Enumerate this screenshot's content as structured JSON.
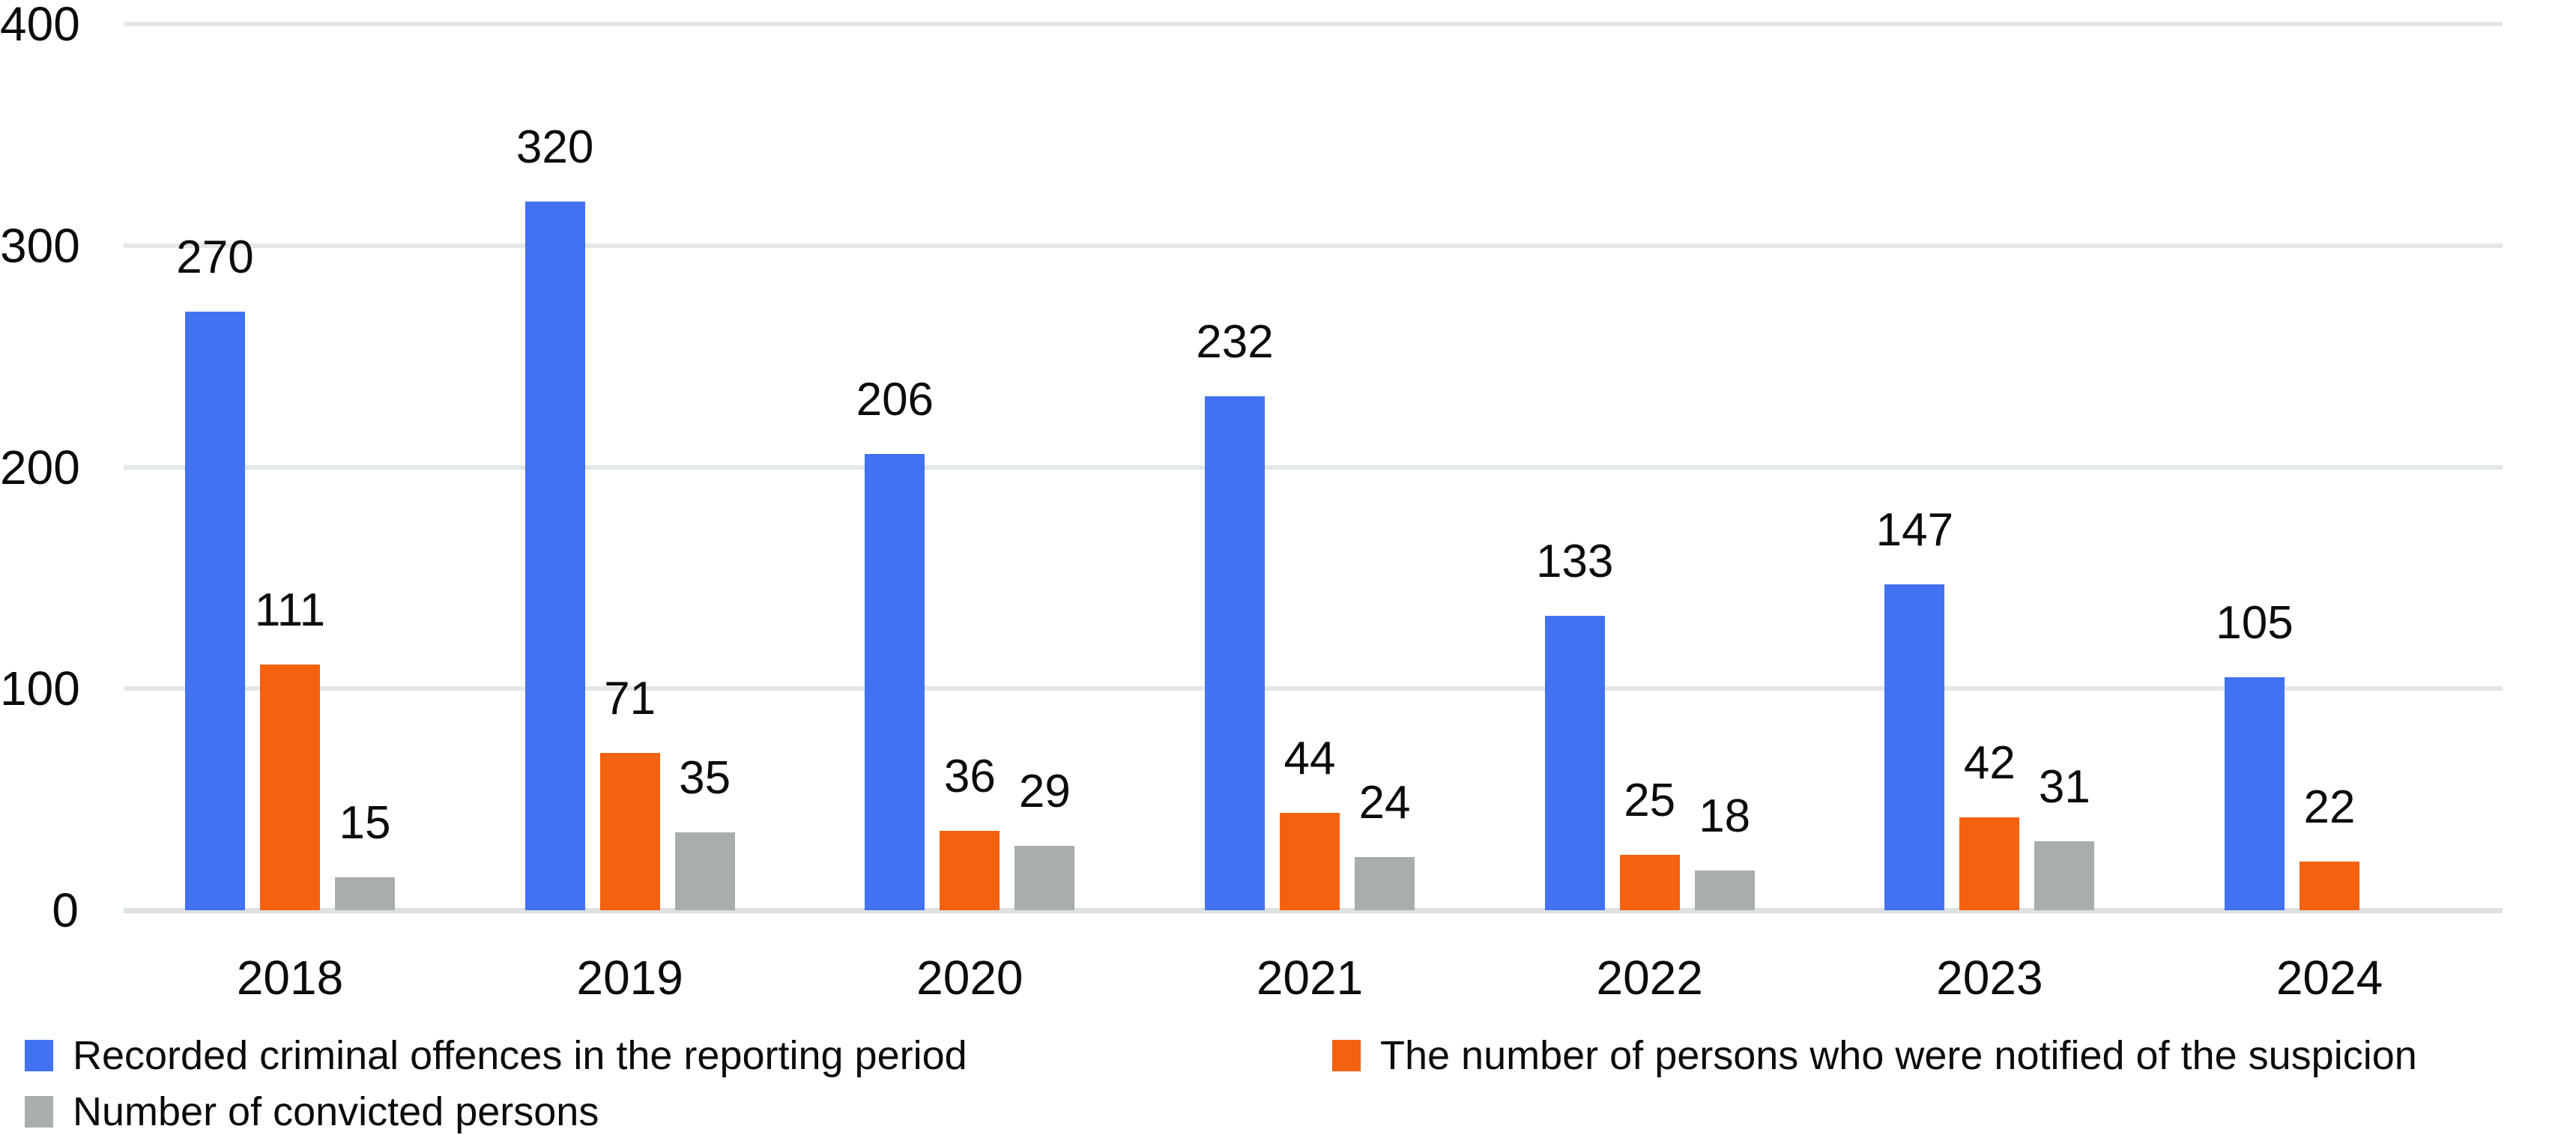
{
  "chart_data": {
    "type": "bar",
    "title": "",
    "xlabel": "",
    "ylabel": "",
    "categories": [
      "2018",
      "2019",
      "2020",
      "2021",
      "2022",
      "2023",
      "2024"
    ],
    "series": [
      {
        "key": "recorded-offences",
        "name": "Recorded criminal offences in the reporting period",
        "color": "#4271F2",
        "values": [
          270,
          320,
          206,
          232,
          133,
          147,
          105
        ]
      },
      {
        "key": "notified-suspicion",
        "name": "The number of persons who were notified of the suspicion",
        "color": "#F4610F",
        "values": [
          111,
          71,
          36,
          44,
          25,
          42,
          22
        ]
      },
      {
        "key": "convicted-persons",
        "name": "Number of convicted persons",
        "color": "#A8AEAE",
        "values": [
          15,
          35,
          29,
          24,
          18,
          31,
          null
        ]
      }
    ],
    "ylim": [
      0,
      400
    ],
    "yticks": [
      0,
      100,
      200,
      300,
      400
    ],
    "grid": true,
    "data_labels": true,
    "legend_position": "bottom",
    "legend_layout": [
      {
        "series": "recorded-offences",
        "column": 0,
        "row": 0
      },
      {
        "series": "notified-suspicion",
        "column": 1,
        "row": 0
      },
      {
        "series": "convicted-persons",
        "column": 0,
        "row": 1
      }
    ],
    "colors": {
      "gridline": "#E3E7E7",
      "baseline": "#DCE1E1",
      "text": "#0B0B0B",
      "background": "#FFFFFF"
    }
  }
}
